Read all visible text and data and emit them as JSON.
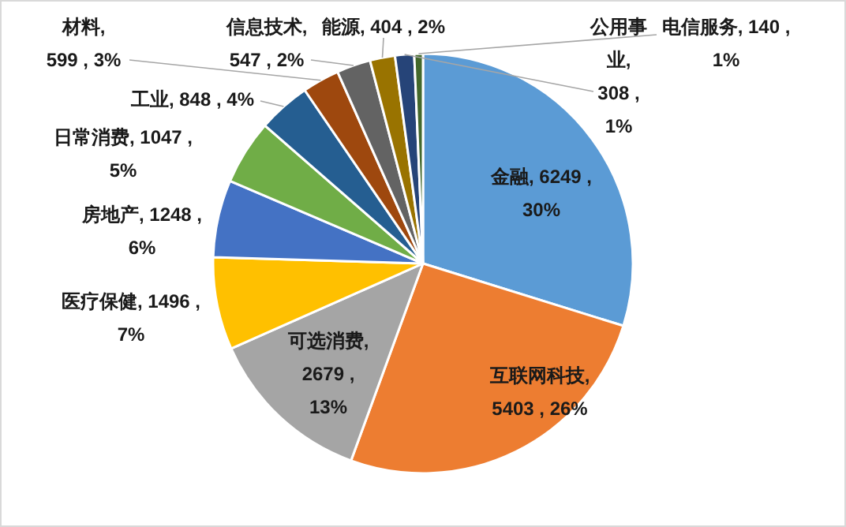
{
  "chart_data": {
    "type": "pie",
    "categories": [
      "金融",
      "互联网科技",
      "可选消费",
      "医疗保健",
      "房地产",
      "日常消费",
      "工业",
      "材料",
      "信息技术",
      "能源",
      "公用事业",
      "电信服务"
    ],
    "values": [
      6249,
      5403,
      2679,
      1496,
      1248,
      1047,
      848,
      599,
      547,
      404,
      308,
      140
    ],
    "colors": [
      "#5b9bd5",
      "#ed7d31",
      "#a5a5a5",
      "#ffc000",
      "#4472c4",
      "#70ad47",
      "#255e91",
      "#9e480e",
      "#636363",
      "#997300",
      "#264478",
      "#43682b"
    ],
    "value_labels": [
      ", 6249 , 30%",
      ", 5403 , 26%",
      ", 2679 , 13%",
      ", 1496 , 7%",
      ", 1248 , 6%",
      ", 1047 , 5%",
      ", 848 , 4%",
      ", 599 , 3%",
      ", 547 , 2%",
      ", 404 , 2%",
      ", 308 , 1%",
      ", 140 , 1%"
    ],
    "legend": false
  }
}
